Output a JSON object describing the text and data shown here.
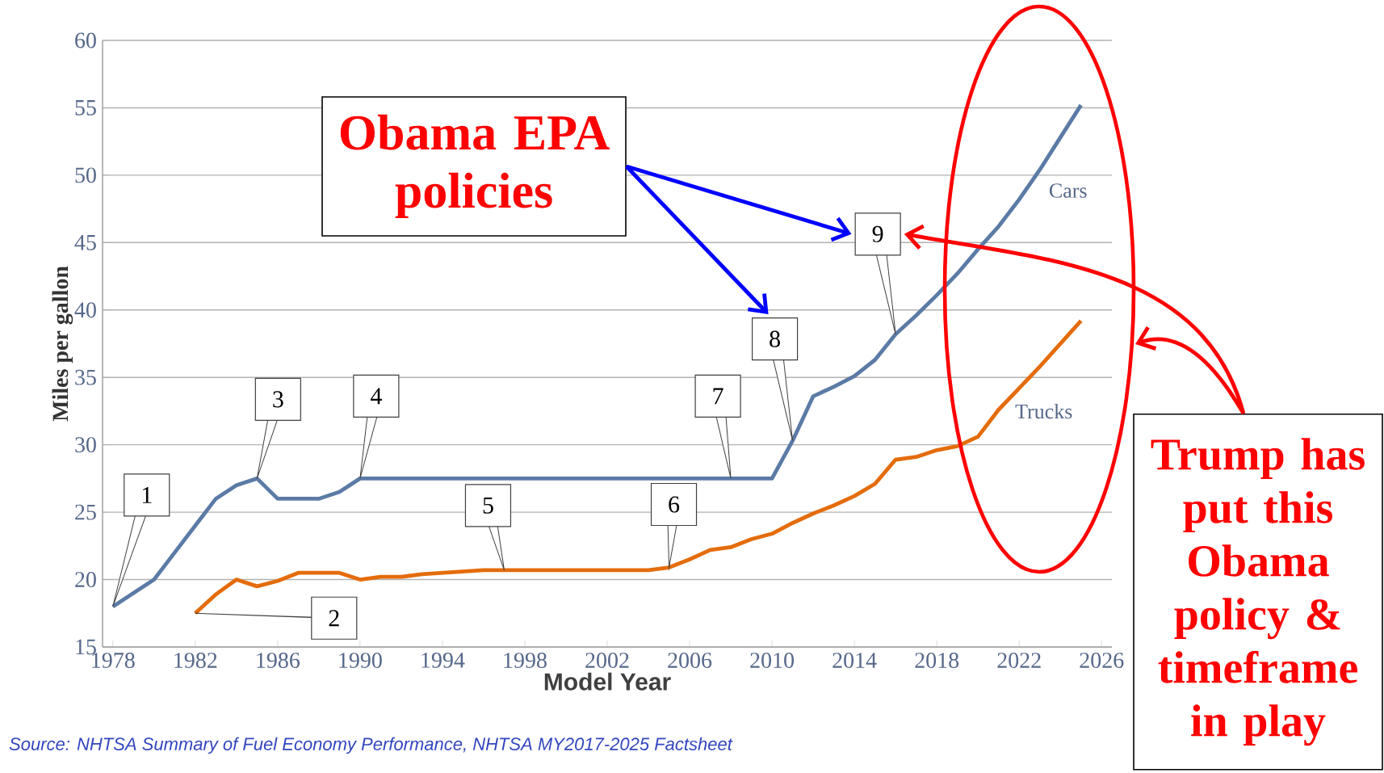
{
  "chart_data": {
    "type": "line",
    "xlabel": "Model Year",
    "ylabel": "Miles per gallon",
    "xlim": [
      1977.5,
      2026.5
    ],
    "ylim": [
      15,
      60
    ],
    "xticks": [
      1978,
      1982,
      1986,
      1990,
      1994,
      1998,
      2002,
      2006,
      2010,
      2014,
      2018,
      2022,
      2026
    ],
    "yticks": [
      15,
      20,
      25,
      30,
      35,
      40,
      45,
      50,
      55,
      60
    ],
    "grid": "y",
    "marker": "none",
    "line_style": "solid",
    "series": [
      {
        "name": "Cars",
        "color": "#5b7ba6",
        "x": [
          1978,
          1979,
          1980,
          1981,
          1982,
          1983,
          1984,
          1985,
          1986,
          1987,
          1988,
          1989,
          1990,
          1991,
          1992,
          1993,
          1994,
          1995,
          1996,
          1997,
          1998,
          1999,
          2000,
          2001,
          2002,
          2003,
          2004,
          2005,
          2006,
          2007,
          2008,
          2009,
          2010,
          2011,
          2012,
          2013,
          2014,
          2015,
          2016,
          2017,
          2018,
          2019,
          2020,
          2021,
          2022,
          2023,
          2024,
          2025
        ],
        "values": [
          18.0,
          19.0,
          20.0,
          22.0,
          24.0,
          26.0,
          27.0,
          27.5,
          26.0,
          26.0,
          26.0,
          26.5,
          27.5,
          27.5,
          27.5,
          27.5,
          27.5,
          27.5,
          27.5,
          27.5,
          27.5,
          27.5,
          27.5,
          27.5,
          27.5,
          27.5,
          27.5,
          27.5,
          27.5,
          27.5,
          27.5,
          27.5,
          27.5,
          30.3,
          33.6,
          34.3,
          35.1,
          36.3,
          38.2,
          39.6,
          41.1,
          42.7,
          44.5,
          46.2,
          48.2,
          50.4,
          52.8,
          55.2
        ]
      },
      {
        "name": "Trucks",
        "color": "#e46c0a",
        "x": [
          1982,
          1983,
          1984,
          1985,
          1986,
          1987,
          1988,
          1989,
          1990,
          1991,
          1992,
          1993,
          1994,
          1995,
          1996,
          1997,
          1998,
          1999,
          2000,
          2001,
          2002,
          2003,
          2004,
          2005,
          2006,
          2007,
          2008,
          2009,
          2010,
          2011,
          2012,
          2013,
          2014,
          2015,
          2016,
          2017,
          2018,
          2019,
          2020,
          2021,
          2022,
          2023,
          2024,
          2025
        ],
        "values": [
          17.5,
          18.9,
          20.0,
          19.5,
          19.9,
          20.5,
          20.5,
          20.5,
          20.0,
          20.2,
          20.2,
          20.4,
          20.5,
          20.6,
          20.7,
          20.7,
          20.7,
          20.7,
          20.7,
          20.7,
          20.7,
          20.7,
          20.7,
          20.9,
          21.5,
          22.2,
          22.4,
          23.0,
          23.4,
          24.2,
          24.9,
          25.5,
          26.2,
          27.1,
          28.9,
          29.1,
          29.6,
          29.9,
          30.6,
          32.6,
          34.2,
          35.8,
          37.5,
          39.2
        ]
      }
    ],
    "annotations": [
      {
        "text": "1",
        "x": 1978,
        "y": 18.0
      },
      {
        "text": "2",
        "x": 1982,
        "y": 17.5
      },
      {
        "text": "3",
        "x": 1985,
        "y": 27.5
      },
      {
        "text": "4",
        "x": 1990,
        "y": 27.5
      },
      {
        "text": "5",
        "x": 1997,
        "y": 20.7
      },
      {
        "text": "6",
        "x": 2005,
        "y": 20.9
      },
      {
        "text": "7",
        "x": 2008,
        "y": 27.5
      },
      {
        "text": "8",
        "x": 2011,
        "y": 30.3
      },
      {
        "text": "9",
        "x": 2016,
        "y": 38.2
      },
      "Obama EPA policies",
      "Trump has put this Obama policy & timeframe in play",
      "Source: NHTSA Summary of Fuel Economy Performance, NHTSA MY2017-2025 Factsheet"
    ]
  }
}
